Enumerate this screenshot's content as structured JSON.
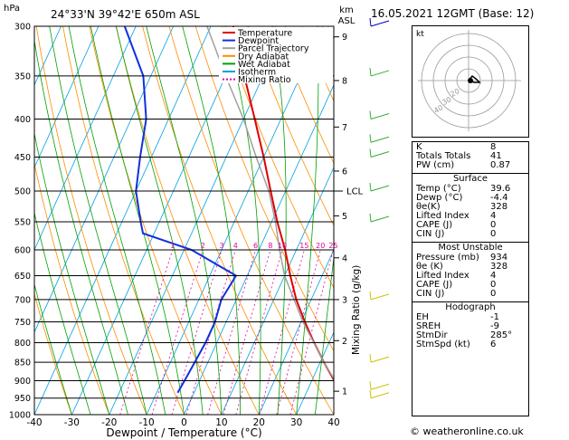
{
  "header": {
    "units_hpa": "hPa",
    "location": "24°33'N  39°42'E  650m  ASL",
    "km_label": "km",
    "asl_label": "ASL",
    "datetime": "16.05.2021  12GMT  (Base: 12)"
  },
  "legend": [
    {
      "label": "Temperature",
      "color": "#e00000"
    },
    {
      "label": "Dewpoint",
      "color": "#1030e0"
    },
    {
      "label": "Parcel Trajectory",
      "color": "#a0a0a0"
    },
    {
      "label": "Dry Adiabat",
      "color": "#ff8c00"
    },
    {
      "label": "Wet Adiabat",
      "color": "#00a000"
    },
    {
      "label": "Isotherm",
      "color": "#00a0e0"
    },
    {
      "label": "Mixing Ratio",
      "color": "#e000a0"
    }
  ],
  "chart_data": {
    "type": "line",
    "title": "24°33'N  39°42'E  650m  ASL",
    "xlabel": "Dewpoint / Temperature (°C)",
    "ylabel": "hPa",
    "xlim": [
      -40,
      40
    ],
    "ylim": [
      1000,
      300
    ],
    "y_scale": "log",
    "pressure_ticks": [
      300,
      350,
      400,
      450,
      500,
      550,
      600,
      650,
      700,
      750,
      800,
      850,
      900,
      950,
      1000
    ],
    "temp_ticks": [
      -40,
      -30,
      -20,
      -10,
      0,
      10,
      20,
      30,
      40
    ],
    "km_ticks": [
      {
        "p": 930,
        "km": "1"
      },
      {
        "p": 795,
        "km": "2"
      },
      {
        "p": 700,
        "km": "3"
      },
      {
        "p": 615,
        "km": "4"
      },
      {
        "p": 540,
        "km": "5"
      },
      {
        "p": 470,
        "km": "6"
      },
      {
        "p": 410,
        "km": "7"
      },
      {
        "p": 355,
        "km": "8"
      },
      {
        "p": 310,
        "km": "9"
      }
    ],
    "lcl_label": "LCL",
    "lcl_p": 500,
    "mixing_ratio_label": "Mixing Ratio (g/kg)",
    "mixing_ratios": [
      "1",
      "2",
      "3",
      "4",
      "6",
      "8",
      "10",
      "15",
      "20",
      "25"
    ],
    "series": [
      {
        "name": "Temperature",
        "color": "#e00000",
        "points": [
          [
            1000,
            42
          ],
          [
            934,
            39.6
          ],
          [
            900,
            36
          ],
          [
            850,
            31
          ],
          [
            800,
            26
          ],
          [
            750,
            21
          ],
          [
            700,
            16
          ],
          [
            650,
            11.5
          ],
          [
            600,
            7
          ],
          [
            550,
            1.5
          ],
          [
            500,
            -4
          ],
          [
            450,
            -10
          ],
          [
            400,
            -17
          ],
          [
            350,
            -25
          ],
          [
            300,
            -34
          ]
        ]
      },
      {
        "name": "Dewpoint",
        "color": "#1030e0",
        "points": [
          [
            934,
            -4.4
          ],
          [
            900,
            -4
          ],
          [
            850,
            -3.5
          ],
          [
            800,
            -3
          ],
          [
            750,
            -3
          ],
          [
            700,
            -4
          ],
          [
            650,
            -3
          ],
          [
            600,
            -18
          ],
          [
            570,
            -33
          ],
          [
            550,
            -35
          ],
          [
            500,
            -40
          ],
          [
            450,
            -43
          ],
          [
            400,
            -46
          ],
          [
            350,
            -52
          ],
          [
            300,
            -63
          ]
        ]
      },
      {
        "name": "Parcel Trajectory",
        "color": "#a0a0a0",
        "points": [
          [
            934,
            39.6
          ],
          [
            850,
            31
          ],
          [
            750,
            20.5
          ],
          [
            650,
            10
          ],
          [
            600,
            5.5
          ],
          [
            550,
            1
          ],
          [
            500,
            -4.5
          ],
          [
            450,
            -12
          ],
          [
            400,
            -20
          ],
          [
            350,
            -30
          ],
          [
            300,
            -41
          ]
        ]
      }
    ]
  },
  "indices": {
    "rows": [
      {
        "k": "K",
        "v": "8"
      },
      {
        "k": "Totals Totals",
        "v": "41"
      },
      {
        "k": "PW (cm)",
        "v": "0.87"
      }
    ]
  },
  "surface": {
    "title": "Surface",
    "rows": [
      {
        "k": "Temp (°C)",
        "v": "39.6"
      },
      {
        "k": "Dewp (°C)",
        "v": "-4.4"
      },
      {
        "k": "θe(K)",
        "v": "328"
      },
      {
        "k": "Lifted Index",
        "v": "4"
      },
      {
        "k": "CAPE (J)",
        "v": "0"
      },
      {
        "k": "CIN (J)",
        "v": "0"
      }
    ]
  },
  "unstable": {
    "title": "Most Unstable",
    "rows": [
      {
        "k": "Pressure (mb)",
        "v": "934"
      },
      {
        "k": "θe (K)",
        "v": "328"
      },
      {
        "k": "Lifted Index",
        "v": "4"
      },
      {
        "k": "CAPE (J)",
        "v": "0"
      },
      {
        "k": "CIN (J)",
        "v": "0"
      }
    ]
  },
  "hodograph": {
    "title": "Hodograph",
    "rows": [
      {
        "k": "EH",
        "v": "-1"
      },
      {
        "k": "SREH",
        "v": "-9"
      },
      {
        "k": "StmDir",
        "v": "285°"
      },
      {
        "k": "StmSpd (kt)",
        "v": "6"
      }
    ],
    "kt_label": "kt",
    "ring_labels": [
      "40",
      "30",
      "20"
    ]
  },
  "footer": "© weatheronline.co.uk"
}
